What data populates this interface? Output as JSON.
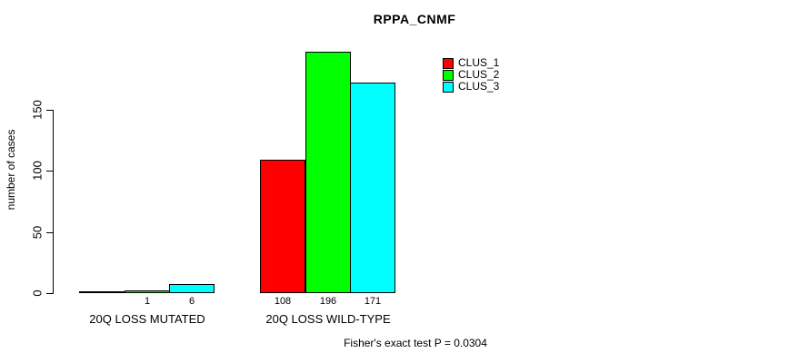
{
  "title": "RPPA_CNMF",
  "footer": "Fisher's exact test P = 0.0304",
  "colors": {
    "clus_1": "#FF0000",
    "clus_2": "#00FF00",
    "clus_3": "#00FFFF",
    "axis": "#000000",
    "background": "#FFFFFF"
  },
  "chart_data": {
    "type": "bar",
    "title": "RPPA_CNMF",
    "xlabel": "",
    "ylabel": "number of cases",
    "categories": [
      "20Q LOSS MUTATED",
      "20Q LOSS WILD-TYPE"
    ],
    "series": [
      {
        "name": "CLUS_1",
        "color": "#FF0000",
        "values": [
          0,
          108
        ]
      },
      {
        "name": "CLUS_2",
        "color": "#00FF00",
        "values": [
          1,
          196
        ]
      },
      {
        "name": "CLUS_3",
        "color": "#00FFFF",
        "values": [
          6,
          171
        ]
      }
    ],
    "bar_value_labels": [
      [
        "",
        "1",
        "6"
      ],
      [
        "108",
        "196",
        "171"
      ]
    ],
    "yticks": [
      0,
      50,
      100,
      150
    ],
    "ylim": [
      0,
      200
    ],
    "grid": false,
    "legend_position": "top-right",
    "bar_border_color": "#000000",
    "annotation": "Fisher's exact test P = 0.0304"
  }
}
